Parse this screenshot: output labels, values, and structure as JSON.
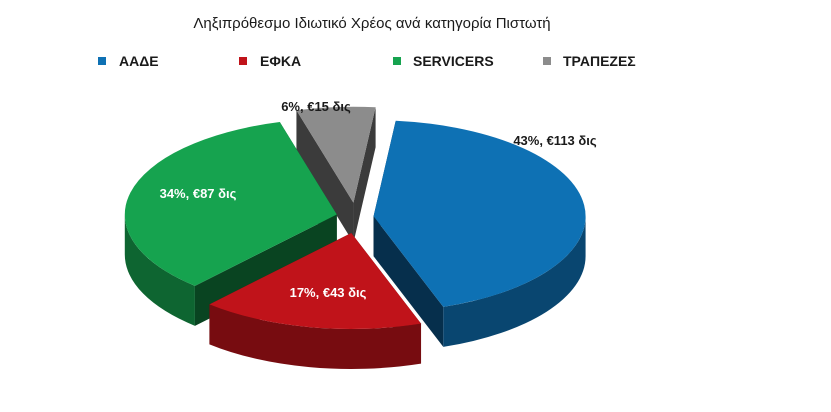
{
  "chart_data": {
    "type": "pie",
    "title": "Ληξιπρόθεσμο Ιδιωτικό Χρέος ανά κατηγορία Πιστωτή",
    "legend_position": "top",
    "slices": [
      {
        "name": "ΑΑΔΕ",
        "percent": 43,
        "value": 113,
        "label": "43%, €113  δις",
        "color": "#0E71B4",
        "label_color": "#1a1a1a"
      },
      {
        "name": "ΕΦΚΑ",
        "percent": 17,
        "value": 43,
        "label": "17%, €43  δις",
        "color": "#C0131A",
        "label_color": "#ffffff"
      },
      {
        "name": "SERVICERS",
        "percent": 34,
        "value": 87,
        "label": "34%, €87  δις",
        "color": "#16A34F",
        "label_color": "#ffffff"
      },
      {
        "name": "ΤΡΑΠΕΖΕΣ",
        "percent": 6,
        "value": 15,
        "label": "6%, €15  δις",
        "color": "#8C8C8C",
        "label_color": "#1a1a1a"
      }
    ]
  }
}
